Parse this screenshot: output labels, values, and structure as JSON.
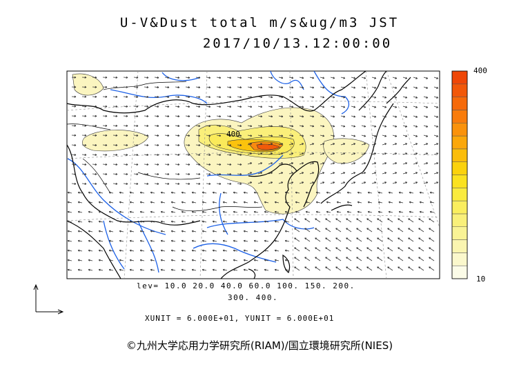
{
  "title": {
    "line1": "U-V&Dust total m/s&ug/m3 JST",
    "line2": "2017/10/13.12:00:00"
  },
  "levels": {
    "line1": "lev= 10.0 20.0 40.0 60.0 100. 150. 200.",
    "line2": "300. 400.",
    "values": [
      10,
      20,
      40,
      60,
      100,
      150,
      200,
      300,
      400
    ]
  },
  "units": "XUNIT = 6.000E+01, YUNIT = 6.000E+01",
  "colorbar": {
    "max_label": "400",
    "min_label": "10",
    "colors": [
      "#fcfce8",
      "#fbf8cc",
      "#faf5b0",
      "#f9f395",
      "#f9f07a",
      "#faee5e",
      "#faeb3e",
      "#fbe21f",
      "#fbd20c",
      "#fbbd0a",
      "#fba70a",
      "#fa920b",
      "#f97c0b",
      "#f66a0a",
      "#f25809",
      "#ef4707"
    ]
  },
  "contour_label": "400",
  "credit": "©九州大学応用力学研究所(RIAM)/国立環境研究所(NIES)",
  "colors": {
    "coast": "#000000",
    "river": "#1a5fe6",
    "border": "#000000",
    "dust_light": "#fbf5c0",
    "dust_mid": "#faea5a",
    "dust_high": "#f98a10",
    "dust_peak": "#f25a09"
  }
}
